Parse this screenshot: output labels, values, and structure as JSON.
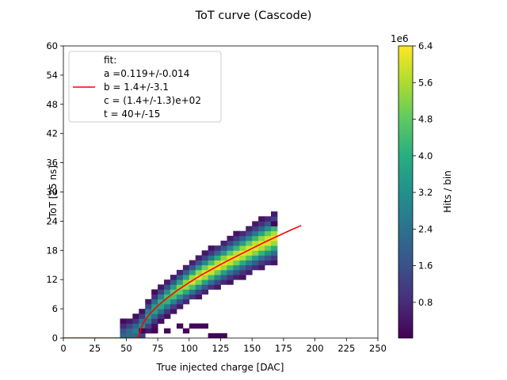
{
  "chart_data": {
    "type": "heatmap",
    "title": "ToT curve (Cascode)",
    "xlabel": "True injected charge [DAC]",
    "ylabel": "ToT [25 ns]",
    "xlim": [
      0,
      250
    ],
    "ylim": [
      0,
      60
    ],
    "x_ticks": [
      0,
      25,
      50,
      75,
      100,
      125,
      150,
      175,
      200,
      225,
      250
    ],
    "y_ticks": [
      0,
      6,
      12,
      18,
      24,
      30,
      36,
      42,
      48,
      54,
      60
    ],
    "grid": false,
    "colorbar": {
      "label": "Hits / bin",
      "multiplier": "1e6",
      "colormap": "viridis",
      "range": [
        0.02,
        6.4
      ],
      "ticks": [
        "0.8",
        "1.6",
        "2.4",
        "3.2",
        "4.0",
        "4.8",
        "5.6",
        "6.4"
      ]
    },
    "heatmap": {
      "x_bin_width": 5,
      "y_bin_width": 1,
      "band": {
        "x_start": 45,
        "x_end": 170,
        "description": "counts concentrated around the fitted curve; fringe cells near the lower edge",
        "extra_cells": [
          {
            "x": 60,
            "y": 1
          },
          {
            "x": 70,
            "y": 1
          },
          {
            "x": 80,
            "y": 1
          },
          {
            "x": 90,
            "y": 2
          },
          {
            "x": 95,
            "y": 1
          },
          {
            "x": 100,
            "y": 2
          },
          {
            "x": 105,
            "y": 2
          },
          {
            "x": 110,
            "y": 2
          },
          {
            "x": 115,
            "y": 0
          },
          {
            "x": 120,
            "y": 0
          },
          {
            "x": 125,
            "y": 0
          },
          {
            "x": 165,
            "y": 23
          }
        ]
      }
    },
    "series": [
      {
        "name": "fit",
        "type": "line",
        "color": "#ff0000",
        "x": [
          0,
          59,
          60,
          61,
          62,
          64,
          67,
          70,
          75,
          80,
          90,
          100,
          110,
          120,
          130,
          140,
          150,
          160,
          170,
          180,
          189
        ],
        "y": [
          0,
          0,
          0.5,
          1.4,
          2.2,
          3.3,
          4.4,
          5.3,
          6.6,
          7.7,
          9.7,
          11.4,
          13.0,
          14.4,
          15.8,
          17.1,
          18.4,
          19.7,
          20.9,
          22.1,
          23.1
        ]
      }
    ],
    "legend": {
      "placement": "top-left",
      "entries": [
        "fit:",
        "a =0.119+/-0.014",
        "b = 1.4+/-3.1",
        "c = (1.4+/-1.3)e+02",
        "t = 40+/-15"
      ]
    }
  }
}
